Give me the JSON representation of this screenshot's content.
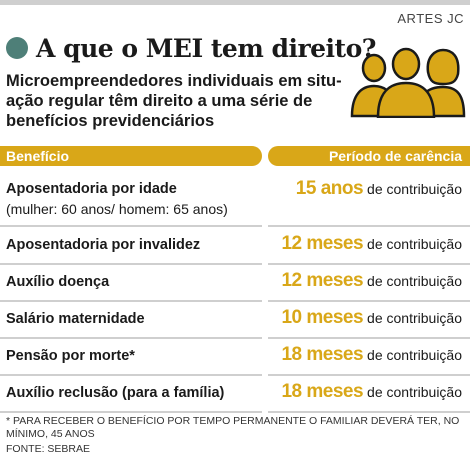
{
  "credit": "ARTES JC",
  "title": "A que o MEI tem direito?",
  "intro": [
    "Microempreendedores individuais em situ-",
    "ação regular têm direito a uma série de",
    "benefícios previdenciários"
  ],
  "colors": {
    "accent": "#d9a718",
    "bullet": "#4e7f78",
    "separator": "#cfcfcf"
  },
  "table": {
    "headers": {
      "benefit": "Benefício",
      "period": "Período de carência"
    },
    "rows": [
      {
        "benefit": "Aposentadoria por idade",
        "note": "(mulher: 60 anos/ homem: 65 anos)",
        "period": "15 anos",
        "suffix": "de contribuição"
      },
      {
        "benefit": "Aposentadoria por invalidez",
        "period": "12 meses",
        "suffix": "de contribuição"
      },
      {
        "benefit": "Auxílio doença",
        "period": "12 meses",
        "suffix": "de contribuição"
      },
      {
        "benefit": "Salário maternidade",
        "period": "10 meses",
        "suffix": "de contribuição"
      },
      {
        "benefit": "Pensão por morte*",
        "period": "18 meses",
        "suffix": "de contribuição"
      },
      {
        "benefit": "Auxílio reclusão (para a família)",
        "period": "18 meses",
        "suffix": "de contribuição"
      }
    ]
  },
  "footnote": "* PARA RECEBER O BENEFÍCIO POR TEMPO PERMANENTE O FAMILIAR DEVERÁ TER, NO MÍNIMO, 45 ANOS",
  "source": "FONTE: SEBRAE",
  "illustration": "people-group-icon"
}
